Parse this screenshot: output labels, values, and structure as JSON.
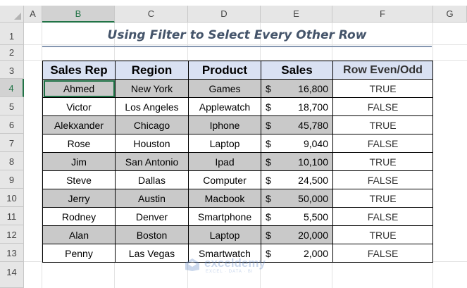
{
  "sheet": {
    "columns": [
      "A",
      "B",
      "C",
      "D",
      "E",
      "F",
      "G"
    ],
    "rows": [
      "1",
      "2",
      "3",
      "4",
      "5",
      "6",
      "7",
      "8",
      "9",
      "10",
      "11",
      "12",
      "13",
      "14"
    ],
    "title": "Using Filter to Select Every Other Row"
  },
  "table": {
    "headers": [
      "Sales Rep",
      "Region",
      "Product",
      "Sales",
      "Row Even/Odd"
    ],
    "currency_symbol": "$",
    "rows": [
      [
        "Ahmed",
        "New York",
        "Games",
        "16,800",
        "TRUE"
      ],
      [
        "Victor",
        "Los Angeles",
        "Applewatch",
        "18,700",
        "FALSE"
      ],
      [
        "Alekxander",
        "Chicago",
        "Iphone",
        "45,780",
        "TRUE"
      ],
      [
        "Rose",
        "Houston",
        "Laptop",
        "9,040",
        "FALSE"
      ],
      [
        "Jim",
        "San Antonio",
        "Ipad",
        "10,100",
        "TRUE"
      ],
      [
        "Steve",
        "Dallas",
        "Computer",
        "24,500",
        "FALSE"
      ],
      [
        "Jerry",
        "Austin",
        "Macbook",
        "50,000",
        "TRUE"
      ],
      [
        "Rodney",
        "Denver",
        "Smartphone",
        "5,500",
        "FALSE"
      ],
      [
        "Alan",
        "Boston",
        "Laptop",
        "20,000",
        "TRUE"
      ],
      [
        "Penny",
        "Las Vegas",
        "Smartwatch",
        "2,000",
        "FALSE"
      ]
    ]
  },
  "watermark": {
    "name": "exceldemy",
    "tagline": "EXCEL · DATA · BI"
  },
  "colors": {
    "header_fill": "#d9e1f2",
    "shaded_fill": "#c9c9c9",
    "title_text": "#44546a",
    "selection": "#217346"
  }
}
